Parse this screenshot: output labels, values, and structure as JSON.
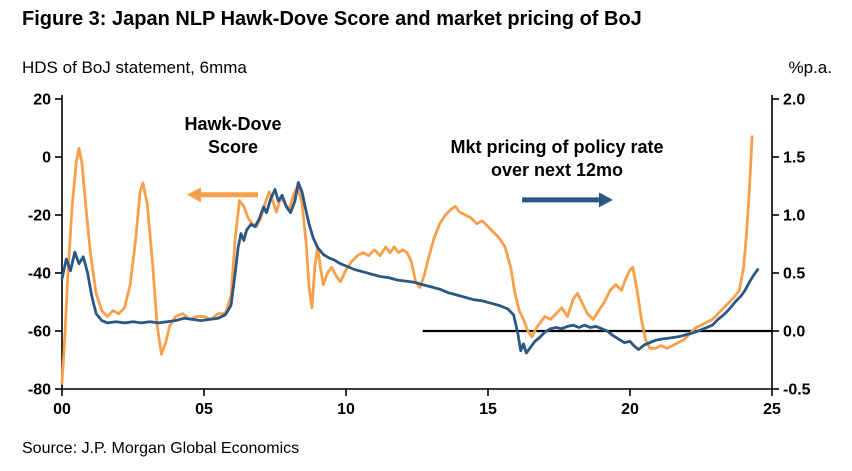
{
  "title": "Figure 3: Japan NLP Hawk-Dove Score and market pricing of BoJ",
  "subtitle_left": "HDS of BoJ statement, 6mma",
  "subtitle_right": "%p.a.",
  "source": "Source: J.P. Morgan Global Economics",
  "annotations": {
    "hds_label": "Hawk-Dove\nScore",
    "mkt_label": "Mkt pricing of policy rate\nover next 12mo"
  },
  "colors": {
    "hds": "#F7A04B",
    "mkt": "#2A5784",
    "axis": "#000000"
  },
  "chart_data": {
    "type": "line",
    "title": "Figure 3: Japan NLP Hawk-Dove Score and market pricing of BoJ",
    "x_range": [
      2000,
      2025
    ],
    "x_tick_values": [
      2000,
      2005,
      2010,
      2015,
      2020,
      2025
    ],
    "x_tick_labels": [
      "00",
      "05",
      "10",
      "15",
      "20",
      "25"
    ],
    "left_axis": {
      "label": "HDS of BoJ statement, 6mma",
      "range": [
        -80,
        20
      ],
      "tick_values": [
        20,
        0,
        -20,
        -40,
        -60,
        -80
      ],
      "tick_labels": [
        "20",
        "0",
        "-20",
        "-40",
        "-60",
        "-80"
      ]
    },
    "right_axis": {
      "label": "%p.a.",
      "range": [
        -0.5,
        2.0
      ],
      "tick_values": [
        2.0,
        1.5,
        1.0,
        0.5,
        0.0,
        -0.5
      ],
      "tick_labels": [
        "2.0",
        "1.5",
        "1.0",
        "0.5",
        "0.0",
        "-0.5"
      ]
    },
    "zero_line": {
      "axis": "right",
      "value": 0.0,
      "x_from": 2012.7,
      "x_to": 2025
    },
    "arrows": [
      {
        "name": "hds-arrow",
        "axis": "left",
        "value": -13,
        "x_from": 2006.9,
        "x_to": 2004.4,
        "color": "#F7A04B"
      },
      {
        "name": "mkt-arrow",
        "axis": "right",
        "value": 1.13,
        "x_from": 2016.2,
        "x_to": 2019.4,
        "color": "#2A5784"
      }
    ],
    "series": [
      {
        "name": "Hawk-Dove Score",
        "axis": "left",
        "color": "#F7A04B",
        "points": [
          [
            2000.0,
            -78
          ],
          [
            2000.1,
            -62
          ],
          [
            2000.2,
            -42
          ],
          [
            2000.35,
            -18
          ],
          [
            2000.5,
            -2
          ],
          [
            2000.6,
            3
          ],
          [
            2000.7,
            -2
          ],
          [
            2000.85,
            -18
          ],
          [
            2001.0,
            -33
          ],
          [
            2001.2,
            -47
          ],
          [
            2001.4,
            -53
          ],
          [
            2001.6,
            -55
          ],
          [
            2001.8,
            -53
          ],
          [
            2002.0,
            -54
          ],
          [
            2002.2,
            -52
          ],
          [
            2002.4,
            -44
          ],
          [
            2002.6,
            -28
          ],
          [
            2002.75,
            -12
          ],
          [
            2002.85,
            -9
          ],
          [
            2003.0,
            -16
          ],
          [
            2003.2,
            -38
          ],
          [
            2003.35,
            -58
          ],
          [
            2003.5,
            -68
          ],
          [
            2003.65,
            -64
          ],
          [
            2003.8,
            -58
          ],
          [
            2004.0,
            -55
          ],
          [
            2004.25,
            -54
          ],
          [
            2004.5,
            -56
          ],
          [
            2004.75,
            -55
          ],
          [
            2005.0,
            -55
          ],
          [
            2005.25,
            -56
          ],
          [
            2005.5,
            -54
          ],
          [
            2005.75,
            -54
          ],
          [
            2005.95,
            -48
          ],
          [
            2006.1,
            -28
          ],
          [
            2006.25,
            -15
          ],
          [
            2006.4,
            -17
          ],
          [
            2006.55,
            -21
          ],
          [
            2006.7,
            -23
          ],
          [
            2006.85,
            -24
          ],
          [
            2007.0,
            -21
          ],
          [
            2007.15,
            -16
          ],
          [
            2007.3,
            -12
          ],
          [
            2007.45,
            -16
          ],
          [
            2007.55,
            -19
          ],
          [
            2007.7,
            -14
          ],
          [
            2007.85,
            -16
          ],
          [
            2008.0,
            -18
          ],
          [
            2008.15,
            -13
          ],
          [
            2008.3,
            -10
          ],
          [
            2008.45,
            -16
          ],
          [
            2008.6,
            -30
          ],
          [
            2008.7,
            -45
          ],
          [
            2008.8,
            -52
          ],
          [
            2008.9,
            -38
          ],
          [
            2009.0,
            -31
          ],
          [
            2009.1,
            -38
          ],
          [
            2009.2,
            -44
          ],
          [
            2009.35,
            -40
          ],
          [
            2009.5,
            -38
          ],
          [
            2009.65,
            -41
          ],
          [
            2009.8,
            -43
          ],
          [
            2010.0,
            -39
          ],
          [
            2010.2,
            -36
          ],
          [
            2010.4,
            -34
          ],
          [
            2010.6,
            -33
          ],
          [
            2010.8,
            -34
          ],
          [
            2011.0,
            -32
          ],
          [
            2011.2,
            -34
          ],
          [
            2011.4,
            -31
          ],
          [
            2011.55,
            -33
          ],
          [
            2011.7,
            -31
          ],
          [
            2011.85,
            -33
          ],
          [
            2012.0,
            -32
          ],
          [
            2012.15,
            -33
          ],
          [
            2012.3,
            -36
          ],
          [
            2012.45,
            -43
          ],
          [
            2012.6,
            -45
          ],
          [
            2012.75,
            -41
          ],
          [
            2012.9,
            -35
          ],
          [
            2013.1,
            -28
          ],
          [
            2013.3,
            -23
          ],
          [
            2013.5,
            -20
          ],
          [
            2013.7,
            -18
          ],
          [
            2013.85,
            -17
          ],
          [
            2014.0,
            -19
          ],
          [
            2014.2,
            -20
          ],
          [
            2014.4,
            -21
          ],
          [
            2014.6,
            -23
          ],
          [
            2014.8,
            -22
          ],
          [
            2015.0,
            -24
          ],
          [
            2015.2,
            -26
          ],
          [
            2015.4,
            -28
          ],
          [
            2015.6,
            -31
          ],
          [
            2015.8,
            -38
          ],
          [
            2015.95,
            -47
          ],
          [
            2016.1,
            -53
          ],
          [
            2016.25,
            -56
          ],
          [
            2016.4,
            -60
          ],
          [
            2016.55,
            -62
          ],
          [
            2016.7,
            -59
          ],
          [
            2016.85,
            -57
          ],
          [
            2017.0,
            -55
          ],
          [
            2017.2,
            -56
          ],
          [
            2017.4,
            -54
          ],
          [
            2017.6,
            -52
          ],
          [
            2017.8,
            -55
          ],
          [
            2018.0,
            -49
          ],
          [
            2018.15,
            -47
          ],
          [
            2018.3,
            -50
          ],
          [
            2018.5,
            -54
          ],
          [
            2018.7,
            -56
          ],
          [
            2018.9,
            -53
          ],
          [
            2019.1,
            -50
          ],
          [
            2019.3,
            -46
          ],
          [
            2019.5,
            -44
          ],
          [
            2019.7,
            -46
          ],
          [
            2019.85,
            -42
          ],
          [
            2020.0,
            -39
          ],
          [
            2020.1,
            -38
          ],
          [
            2020.25,
            -46
          ],
          [
            2020.4,
            -56
          ],
          [
            2020.55,
            -63
          ],
          [
            2020.7,
            -66
          ],
          [
            2020.9,
            -66
          ],
          [
            2021.1,
            -65
          ],
          [
            2021.3,
            -66
          ],
          [
            2021.5,
            -65
          ],
          [
            2021.7,
            -64
          ],
          [
            2021.9,
            -63
          ],
          [
            2022.1,
            -61
          ],
          [
            2022.3,
            -59
          ],
          [
            2022.5,
            -58
          ],
          [
            2022.7,
            -57
          ],
          [
            2022.9,
            -56
          ],
          [
            2023.1,
            -54
          ],
          [
            2023.3,
            -52
          ],
          [
            2023.5,
            -50
          ],
          [
            2023.7,
            -48
          ],
          [
            2023.85,
            -46
          ],
          [
            2024.0,
            -38
          ],
          [
            2024.1,
            -27
          ],
          [
            2024.2,
            -12
          ],
          [
            2024.3,
            7
          ]
        ]
      },
      {
        "name": "Mkt pricing of policy rate over next 12mo",
        "axis": "right",
        "color": "#2A5784",
        "points": [
          [
            2000.0,
            0.45
          ],
          [
            2000.15,
            0.62
          ],
          [
            2000.3,
            0.52
          ],
          [
            2000.45,
            0.68
          ],
          [
            2000.6,
            0.58
          ],
          [
            2000.75,
            0.64
          ],
          [
            2000.9,
            0.5
          ],
          [
            2001.05,
            0.3
          ],
          [
            2001.2,
            0.15
          ],
          [
            2001.4,
            0.09
          ],
          [
            2001.6,
            0.07
          ],
          [
            2001.9,
            0.08
          ],
          [
            2002.2,
            0.07
          ],
          [
            2002.5,
            0.08
          ],
          [
            2002.8,
            0.07
          ],
          [
            2003.1,
            0.08
          ],
          [
            2003.4,
            0.07
          ],
          [
            2003.7,
            0.08
          ],
          [
            2004.0,
            0.09
          ],
          [
            2004.3,
            0.11
          ],
          [
            2004.6,
            0.1
          ],
          [
            2004.9,
            0.09
          ],
          [
            2005.2,
            0.1
          ],
          [
            2005.5,
            0.11
          ],
          [
            2005.75,
            0.14
          ],
          [
            2005.95,
            0.22
          ],
          [
            2006.1,
            0.5
          ],
          [
            2006.2,
            0.72
          ],
          [
            2006.3,
            0.84
          ],
          [
            2006.4,
            0.78
          ],
          [
            2006.5,
            0.87
          ],
          [
            2006.65,
            0.92
          ],
          [
            2006.8,
            0.9
          ],
          [
            2006.95,
            0.97
          ],
          [
            2007.1,
            1.07
          ],
          [
            2007.2,
            1.02
          ],
          [
            2007.35,
            1.14
          ],
          [
            2007.5,
            1.22
          ],
          [
            2007.62,
            1.12
          ],
          [
            2007.75,
            1.17
          ],
          [
            2007.9,
            1.07
          ],
          [
            2008.05,
            1.02
          ],
          [
            2008.2,
            1.12
          ],
          [
            2008.32,
            1.28
          ],
          [
            2008.45,
            1.2
          ],
          [
            2008.58,
            1.05
          ],
          [
            2008.7,
            0.92
          ],
          [
            2008.85,
            0.8
          ],
          [
            2009.0,
            0.72
          ],
          [
            2009.2,
            0.66
          ],
          [
            2009.4,
            0.63
          ],
          [
            2009.6,
            0.61
          ],
          [
            2009.8,
            0.58
          ],
          [
            2010.0,
            0.56
          ],
          [
            2010.3,
            0.53
          ],
          [
            2010.6,
            0.51
          ],
          [
            2010.9,
            0.49
          ],
          [
            2011.2,
            0.47
          ],
          [
            2011.5,
            0.46
          ],
          [
            2011.8,
            0.44
          ],
          [
            2012.1,
            0.43
          ],
          [
            2012.4,
            0.42
          ],
          [
            2012.7,
            0.4
          ],
          [
            2013.0,
            0.38
          ],
          [
            2013.3,
            0.36
          ],
          [
            2013.6,
            0.33
          ],
          [
            2013.9,
            0.31
          ],
          [
            2014.2,
            0.29
          ],
          [
            2014.5,
            0.27
          ],
          [
            2014.8,
            0.26
          ],
          [
            2015.1,
            0.24
          ],
          [
            2015.4,
            0.22
          ],
          [
            2015.7,
            0.19
          ],
          [
            2015.9,
            0.14
          ],
          [
            2016.05,
            -0.02
          ],
          [
            2016.15,
            -0.17
          ],
          [
            2016.25,
            -0.11
          ],
          [
            2016.35,
            -0.19
          ],
          [
            2016.5,
            -0.14
          ],
          [
            2016.65,
            -0.09
          ],
          [
            2016.8,
            -0.06
          ],
          [
            2017.0,
            -0.01
          ],
          [
            2017.2,
            0.02
          ],
          [
            2017.4,
            0.03
          ],
          [
            2017.6,
            0.02
          ],
          [
            2017.8,
            0.04
          ],
          [
            2018.0,
            0.05
          ],
          [
            2018.2,
            0.03
          ],
          [
            2018.4,
            0.05
          ],
          [
            2018.6,
            0.03
          ],
          [
            2018.8,
            0.04
          ],
          [
            2019.0,
            0.02
          ],
          [
            2019.2,
            0.0
          ],
          [
            2019.4,
            -0.04
          ],
          [
            2019.6,
            -0.07
          ],
          [
            2019.8,
            -0.1
          ],
          [
            2020.0,
            -0.09
          ],
          [
            2020.15,
            -0.13
          ],
          [
            2020.3,
            -0.16
          ],
          [
            2020.5,
            -0.12
          ],
          [
            2020.7,
            -0.1
          ],
          [
            2020.9,
            -0.08
          ],
          [
            2021.1,
            -0.07
          ],
          [
            2021.4,
            -0.06
          ],
          [
            2021.7,
            -0.05
          ],
          [
            2022.0,
            -0.03
          ],
          [
            2022.3,
            -0.01
          ],
          [
            2022.6,
            0.02
          ],
          [
            2022.9,
            0.05
          ],
          [
            2023.1,
            0.1
          ],
          [
            2023.3,
            0.14
          ],
          [
            2023.5,
            0.19
          ],
          [
            2023.7,
            0.25
          ],
          [
            2023.9,
            0.3
          ],
          [
            2024.05,
            0.35
          ],
          [
            2024.2,
            0.42
          ],
          [
            2024.35,
            0.48
          ],
          [
            2024.5,
            0.53
          ]
        ]
      }
    ]
  }
}
